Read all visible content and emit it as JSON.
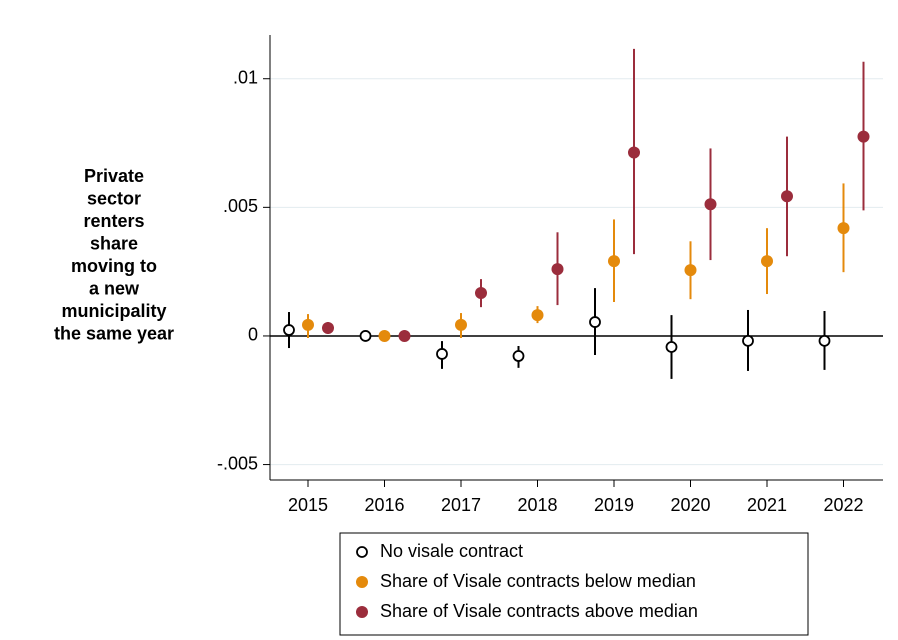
{
  "chart_data": {
    "type": "errorbar",
    "ylabel": [
      "Private",
      "sector",
      "renters",
      "share",
      "moving to",
      "a new",
      "municipality",
      "the same year"
    ],
    "categories": [
      "2015",
      "2016",
      "2017",
      "2018",
      "2019",
      "2020",
      "2021",
      "2022"
    ],
    "series": [
      {
        "name": "No visale contract",
        "color": "#000000",
        "hollow": true,
        "values": [
          0.00023,
          0,
          -0.0007,
          -0.00078,
          0.00054,
          -0.00043,
          -0.00019,
          -0.00019
        ],
        "lower": [
          -0.00047,
          -5e-05,
          -0.00128,
          -0.00124,
          -0.00074,
          -0.00167,
          -0.00136,
          -0.00132
        ],
        "upper": [
          0.00093,
          5e-05,
          -0.0002,
          -0.00039,
          0.00186,
          0.00081,
          0.00101,
          0.00097
        ]
      },
      {
        "name": "Share of Visale contracts below median",
        "color": "#e48a0c",
        "hollow": false,
        "values": [
          0.00043,
          0,
          0.00043,
          0.00081,
          0.00291,
          0.00256,
          0.00291,
          0.00419
        ],
        "lower": [
          -8e-05,
          -5e-05,
          -8e-05,
          0.0005,
          0.00132,
          0.00143,
          0.00163,
          0.00248
        ],
        "upper": [
          0.00085,
          5e-05,
          0.00089,
          0.00116,
          0.00453,
          0.00368,
          0.00419,
          0.00593
        ]
      },
      {
        "name": "Share of Visale contracts above median",
        "color": "#9b2d3c",
        "hollow": false,
        "values": [
          0.00031,
          0,
          0.00167,
          0.0026,
          0.00713,
          0.00512,
          0.00543,
          0.00775
        ],
        "lower": [
          8e-05,
          -5e-05,
          0.00112,
          0.0012,
          0.00318,
          0.00295,
          0.0031,
          0.00488
        ],
        "upper": [
          0.00054,
          5e-05,
          0.00221,
          0.00403,
          0.01116,
          0.00729,
          0.00775,
          0.01066
        ]
      }
    ],
    "ylim": [
      -0.0056,
      0.0117
    ],
    "yticks": [
      {
        "value": -0.005,
        "label": "-.005"
      },
      0,
      {
        "value": 0.005,
        "label": ".005"
      },
      {
        "value": 0.01,
        "label": ".01"
      }
    ],
    "grid": true,
    "reference_line": 0
  }
}
